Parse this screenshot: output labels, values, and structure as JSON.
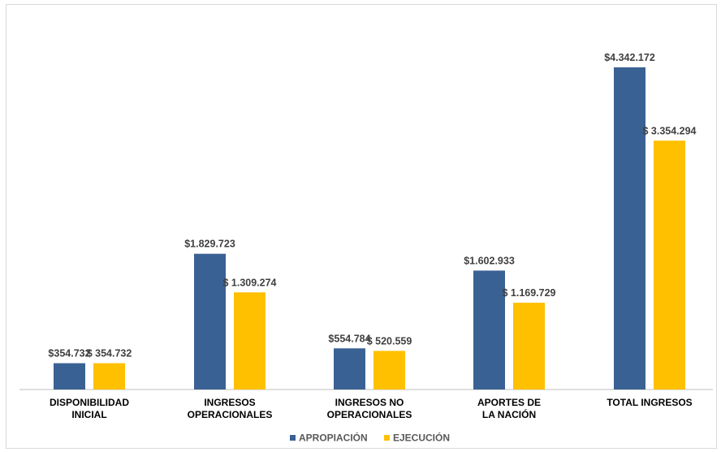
{
  "chart_data": {
    "type": "bar",
    "title": "",
    "xlabel": "",
    "ylabel": "",
    "categories": [
      [
        "DISPONIBILIDAD",
        "INICIAL"
      ],
      [
        "INGRESOS",
        "OPERACIONALES"
      ],
      [
        "INGRESOS NO",
        "OPERACIONALES"
      ],
      [
        "APORTES DE",
        "LA NACIÓN"
      ],
      [
        "TOTAL INGRESOS"
      ]
    ],
    "series": [
      {
        "name": "APROPIACIÓN",
        "color": "#3a6193",
        "values": [
          354732,
          1829723,
          554784,
          1602933,
          4342172
        ],
        "labels": [
          "$354.732",
          "$1.829.723",
          "$554.784",
          "$1.602.933",
          "$4.342.172"
        ]
      },
      {
        "name": "EJECUCIÓN",
        "color": "#ffc000",
        "values": [
          354732,
          1309274,
          520559,
          1169729,
          3354294
        ],
        "labels": [
          "$ 354.732",
          "$ 1.309.274",
          "$ 520.559",
          "$ 1.169.729",
          "$ 3.354.294"
        ]
      }
    ],
    "ylim": [
      0,
      4800000
    ],
    "grid": false,
    "legend": "bottom"
  }
}
